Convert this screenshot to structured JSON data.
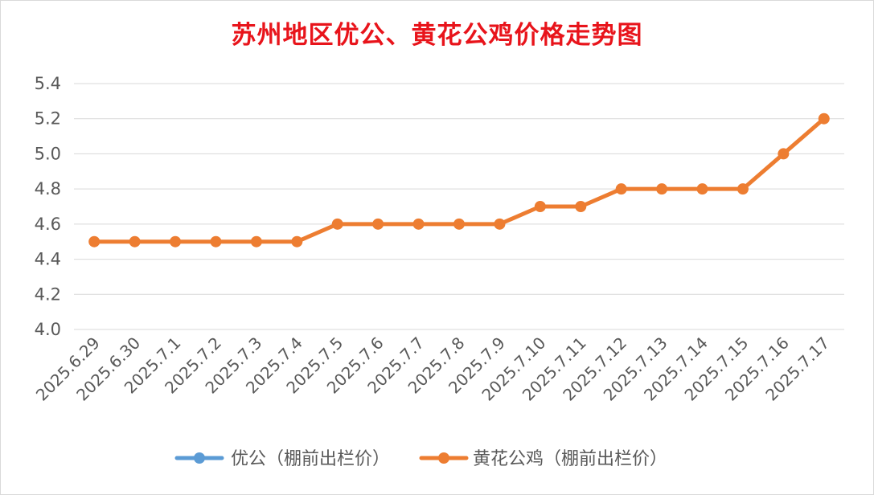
{
  "chart_data": {
    "type": "line",
    "title": "苏州地区优公、黄花公鸡价格走势图",
    "categories": [
      "2025.6.29",
      "2025.6.30",
      "2025.7.1",
      "2025.7.2",
      "2025.7.3",
      "2025.7.4",
      "2025.7.5",
      "2025.7.6",
      "2025.7.7",
      "2025.7.8",
      "2025.7.9",
      "2025.7.10",
      "2025.7.11",
      "2025.7.12",
      "2025.7.13",
      "2025.7.14",
      "2025.7.15",
      "2025.7.16",
      "2025.7.17"
    ],
    "series": [
      {
        "name": "优公（棚前出栏价）",
        "color": "#5b9bd5",
        "values": [
          null,
          null,
          null,
          null,
          null,
          null,
          null,
          null,
          null,
          null,
          null,
          null,
          null,
          null,
          null,
          null,
          null,
          null,
          null
        ]
      },
      {
        "name": "黄花公鸡（棚前出栏价）",
        "color": "#ed7d31",
        "values": [
          4.5,
          4.5,
          4.5,
          4.5,
          4.5,
          4.5,
          4.6,
          4.6,
          4.6,
          4.6,
          4.6,
          4.7,
          4.7,
          4.8,
          4.8,
          4.8,
          4.8,
          5.0,
          5.2
        ]
      }
    ],
    "ylim": [
      4.0,
      5.4
    ],
    "yticks": [
      "4.0",
      "4.2",
      "4.4",
      "4.6",
      "4.8",
      "5.0",
      "5.2",
      "5.4"
    ],
    "grid": true,
    "legend": "bottom",
    "title_color": "#e8141b"
  }
}
